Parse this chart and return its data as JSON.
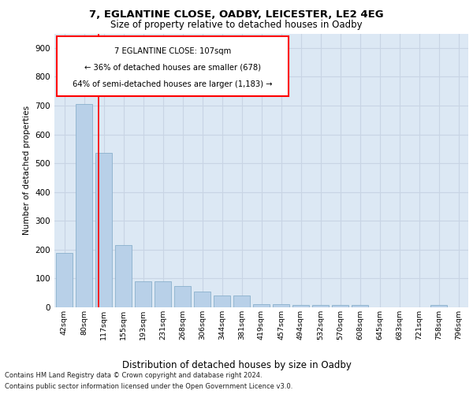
{
  "title1": "7, EGLANTINE CLOSE, OADBY, LEICESTER, LE2 4EG",
  "title2": "Size of property relative to detached houses in Oadby",
  "xlabel": "Distribution of detached houses by size in Oadby",
  "ylabel": "Number of detached properties",
  "categories": [
    "42sqm",
    "80sqm",
    "117sqm",
    "155sqm",
    "193sqm",
    "231sqm",
    "268sqm",
    "306sqm",
    "344sqm",
    "381sqm",
    "419sqm",
    "457sqm",
    "494sqm",
    "532sqm",
    "570sqm",
    "608sqm",
    "645sqm",
    "683sqm",
    "721sqm",
    "758sqm",
    "796sqm"
  ],
  "values": [
    190,
    705,
    535,
    215,
    90,
    90,
    75,
    55,
    40,
    40,
    10,
    10,
    8,
    8,
    8,
    8,
    0,
    0,
    0,
    8,
    0
  ],
  "bar_color": "#b8d0e8",
  "bar_edge_color": "#8ab0cc",
  "grid_color": "#c8d4e4",
  "plot_bg_color": "#dce8f4",
  "annotation_text_line1": "7 EGLANTINE CLOSE: 107sqm",
  "annotation_text_line2": "← 36% of detached houses are smaller (678)",
  "annotation_text_line3": "64% of semi-detached houses are larger (1,183) →",
  "footer_line1": "Contains HM Land Registry data © Crown copyright and database right 2024.",
  "footer_line2": "Contains public sector information licensed under the Open Government Licence v3.0.",
  "ylim": [
    0,
    950
  ],
  "yticks": [
    0,
    100,
    200,
    300,
    400,
    500,
    600,
    700,
    800,
    900
  ],
  "red_line_x": 1.73
}
